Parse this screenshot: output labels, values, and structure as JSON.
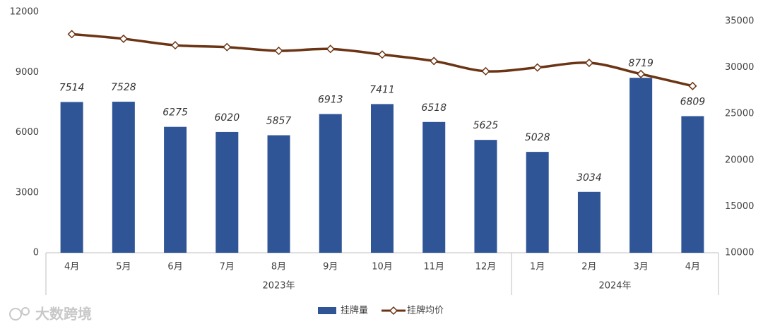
{
  "chart_data": {
    "type": "bar-line",
    "categories": [
      "4月",
      "5月",
      "6月",
      "7月",
      "8月",
      "9月",
      "10月",
      "11月",
      "12月",
      "1月",
      "2月",
      "3月",
      "4月"
    ],
    "category_groups": [
      {
        "label": "2023年",
        "size": 9
      },
      {
        "label": "2024年",
        "size": 4
      }
    ],
    "series": [
      {
        "name": "挂牌量",
        "type": "bar",
        "color": "#2f5597",
        "values": [
          7514,
          7528,
          6275,
          6020,
          5857,
          6913,
          7411,
          6518,
          5625,
          5028,
          3034,
          8719,
          6809
        ]
      },
      {
        "name": "挂牌均价",
        "type": "line",
        "axis": "y2",
        "color": "#6b3414",
        "values": [
          33600,
          33100,
          32400,
          32200,
          31800,
          32000,
          31400,
          30700,
          29600,
          30000,
          30500,
          29300,
          28000
        ]
      }
    ],
    "ylim": [
      0,
      12000
    ],
    "yticks": [
      0,
      3000,
      6000,
      9000,
      12000
    ],
    "y2lim": [
      10000,
      35000
    ],
    "y2ticks": [
      10000,
      15000,
      20000,
      25000,
      30000,
      35000
    ],
    "grid": false,
    "legend": "bottom",
    "watermark": "大数跨境"
  }
}
